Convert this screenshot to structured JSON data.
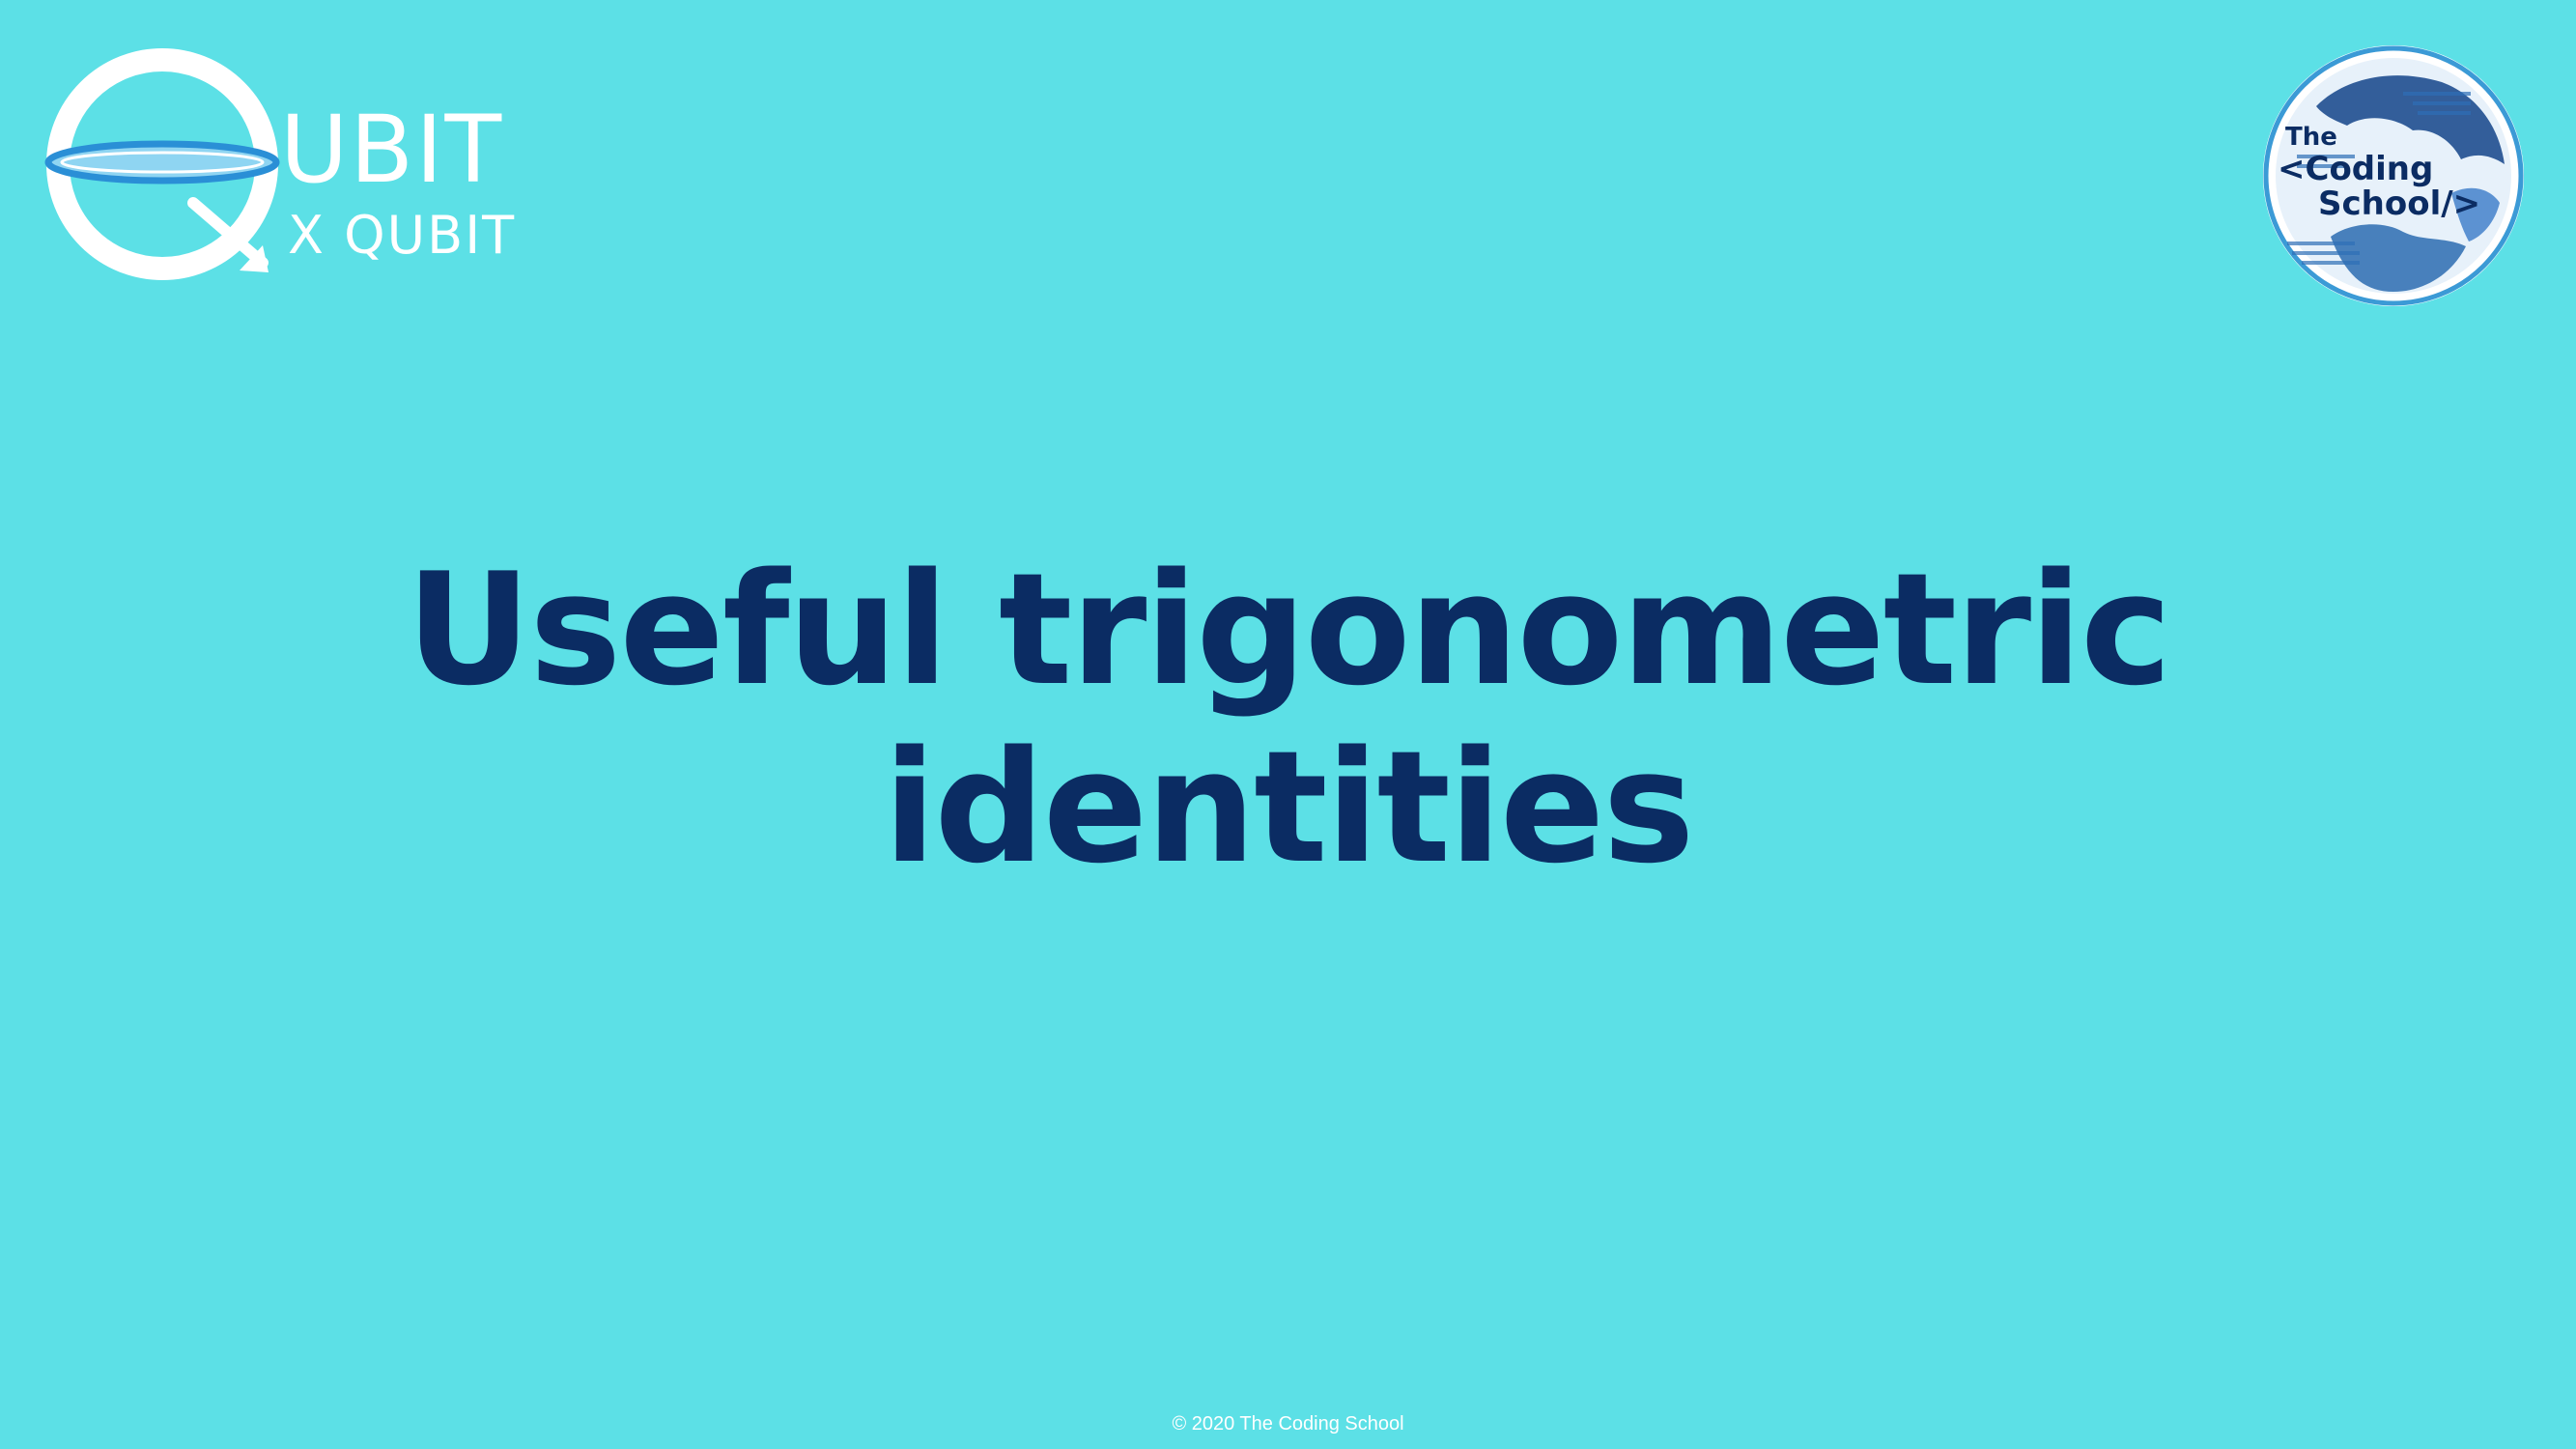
{
  "slide": {
    "background_color": "#5CE0E6",
    "title_line_1": "Useful trigonometric",
    "title_line_2": "identities",
    "title_color": "#0B2C63",
    "footer": "© 2020 The Coding School"
  },
  "logos": {
    "qubit": {
      "primary_text": "UBIT",
      "secondary_text": "X QUBIT",
      "icon": "qubit-q-orbit-icon"
    },
    "coding_school": {
      "line_1": "The",
      "line_2": "<Coding",
      "line_3": "School/>",
      "icon": "globe-binary-seal-icon"
    }
  }
}
